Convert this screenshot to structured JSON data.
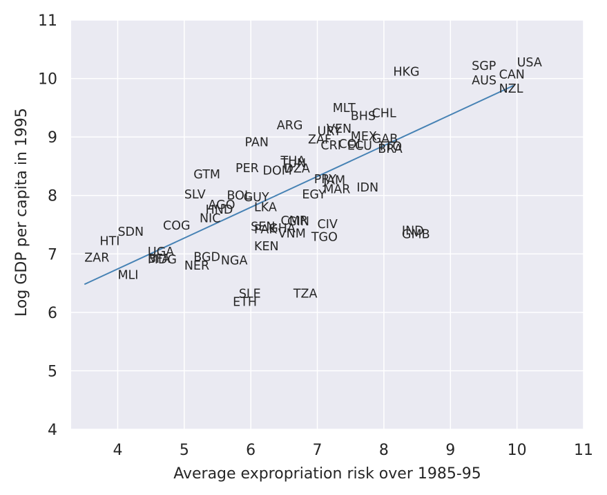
{
  "chart_data": {
    "type": "scatter",
    "title": "",
    "xlabel": "Average expropriation risk over 1985-95",
    "ylabel": "Log GDP per capita in 1995",
    "xlim": [
      3.3,
      11
    ],
    "ylim": [
      4,
      11
    ],
    "xticks": [
      4,
      5,
      6,
      7,
      8,
      9,
      10,
      11
    ],
    "yticks": [
      4,
      5,
      6,
      7,
      8,
      9,
      10,
      11
    ],
    "grid": true,
    "background": "#EAEAF2",
    "grid_color": "#FFFFFF",
    "line_color": "#4682B4",
    "text_color": "#262626",
    "points": [
      {
        "label": "USA",
        "x": 10.0,
        "y": 10.21
      },
      {
        "label": "SGP",
        "x": 9.32,
        "y": 10.15
      },
      {
        "label": "CAN",
        "x": 9.73,
        "y": 10.0
      },
      {
        "label": "HKG",
        "x": 8.14,
        "y": 10.05
      },
      {
        "label": "AUS",
        "x": 9.32,
        "y": 9.9
      },
      {
        "label": "NZL",
        "x": 9.73,
        "y": 9.76
      },
      {
        "label": "MLT",
        "x": 7.23,
        "y": 9.43
      },
      {
        "label": "CHL",
        "x": 7.82,
        "y": 9.34
      },
      {
        "label": "BHS",
        "x": 7.5,
        "y": 9.29
      },
      {
        "label": "ARG",
        "x": 6.39,
        "y": 9.13
      },
      {
        "label": "VEN",
        "x": 7.14,
        "y": 9.07
      },
      {
        "label": "URY",
        "x": 7.0,
        "y": 9.03
      },
      {
        "label": "MEX",
        "x": 7.5,
        "y": 8.94
      },
      {
        "label": "ZAF",
        "x": 6.86,
        "y": 8.89
      },
      {
        "label": "GAB",
        "x": 7.82,
        "y": 8.9
      },
      {
        "label": "TTO",
        "x": 7.91,
        "y": 8.77
      },
      {
        "label": "PAN",
        "x": 5.91,
        "y": 8.84
      },
      {
        "label": "CRI",
        "x": 7.05,
        "y": 8.79
      },
      {
        "label": "COL",
        "x": 7.32,
        "y": 8.81
      },
      {
        "label": "ECU",
        "x": 7.45,
        "y": 8.78
      },
      {
        "label": "BRA",
        "x": 7.91,
        "y": 8.73
      },
      {
        "label": "TUN",
        "x": 6.45,
        "y": 8.48
      },
      {
        "label": "THA",
        "x": 6.45,
        "y": 8.52
      },
      {
        "label": "PER",
        "x": 5.77,
        "y": 8.4
      },
      {
        "label": "DOM",
        "x": 6.18,
        "y": 8.36
      },
      {
        "label": "DZA",
        "x": 6.5,
        "y": 8.39
      },
      {
        "label": "GTM",
        "x": 5.14,
        "y": 8.29
      },
      {
        "label": "PRY",
        "x": 6.95,
        "y": 8.21
      },
      {
        "label": "JAM",
        "x": 7.09,
        "y": 8.19
      },
      {
        "label": "MAR",
        "x": 7.09,
        "y": 8.04
      },
      {
        "label": "IDN",
        "x": 7.59,
        "y": 8.07
      },
      {
        "label": "EGY",
        "x": 6.77,
        "y": 7.95
      },
      {
        "label": "SLV",
        "x": 5.0,
        "y": 7.95
      },
      {
        "label": "BOL",
        "x": 5.64,
        "y": 7.93
      },
      {
        "label": "GUY",
        "x": 5.89,
        "y": 7.9
      },
      {
        "label": "AGO",
        "x": 5.36,
        "y": 7.77
      },
      {
        "label": "HND",
        "x": 5.32,
        "y": 7.69
      },
      {
        "label": "LKA",
        "x": 6.05,
        "y": 7.73
      },
      {
        "label": "NIC",
        "x": 5.23,
        "y": 7.54
      },
      {
        "label": "GHA",
        "x": 6.27,
        "y": 7.37
      },
      {
        "label": "CMR",
        "x": 6.45,
        "y": 7.5
      },
      {
        "label": "GIN",
        "x": 6.55,
        "y": 7.49
      },
      {
        "label": "CIV",
        "x": 7.0,
        "y": 7.44
      },
      {
        "label": "SEN",
        "x": 6.0,
        "y": 7.4
      },
      {
        "label": "PAK",
        "x": 6.05,
        "y": 7.35
      },
      {
        "label": "VNM",
        "x": 6.41,
        "y": 7.28
      },
      {
        "label": "TGO",
        "x": 6.91,
        "y": 7.22
      },
      {
        "label": "IND",
        "x": 8.27,
        "y": 7.33
      },
      {
        "label": "GMB",
        "x": 8.27,
        "y": 7.27
      },
      {
        "label": "COG",
        "x": 4.68,
        "y": 7.42
      },
      {
        "label": "SDN",
        "x": 4.0,
        "y": 7.31
      },
      {
        "label": "HTI",
        "x": 3.73,
        "y": 7.15
      },
      {
        "label": "KEN",
        "x": 6.05,
        "y": 7.06
      },
      {
        "label": "UGA",
        "x": 4.45,
        "y": 6.97
      },
      {
        "label": "BFA",
        "x": 4.45,
        "y": 6.85
      },
      {
        "label": "MDG",
        "x": 4.45,
        "y": 6.84
      },
      {
        "label": "BGD",
        "x": 5.14,
        "y": 6.88
      },
      {
        "label": "NGA",
        "x": 5.55,
        "y": 6.82
      },
      {
        "label": "NER",
        "x": 5.0,
        "y": 6.73
      },
      {
        "label": "ZAR",
        "x": 3.5,
        "y": 6.87
      },
      {
        "label": "MLI",
        "x": 4.0,
        "y": 6.57
      },
      {
        "label": "SLE",
        "x": 5.82,
        "y": 6.25
      },
      {
        "label": "TZA",
        "x": 6.64,
        "y": 6.25
      },
      {
        "label": "ETH",
        "x": 5.73,
        "y": 6.11
      }
    ],
    "fit_line": {
      "x": [
        3.5,
        9.95
      ],
      "y": [
        6.48,
        9.88
      ]
    }
  }
}
